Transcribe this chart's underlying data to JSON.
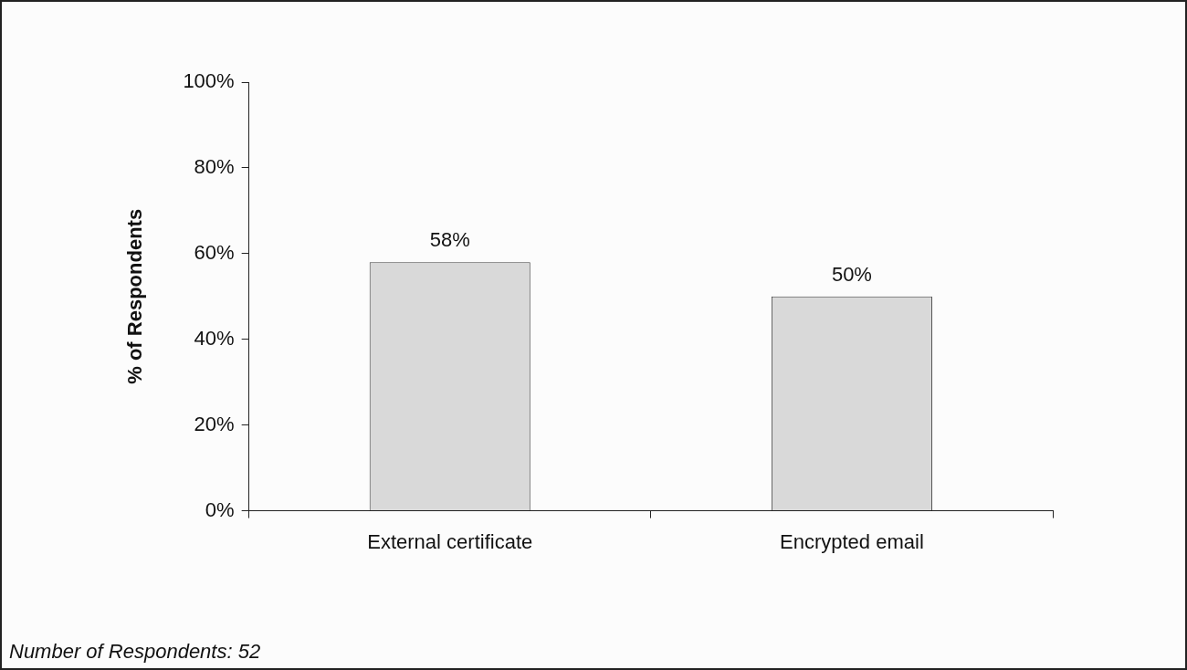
{
  "chart_data": {
    "type": "bar",
    "ylabel": "% of Respondents",
    "categories": [
      "External certificate",
      "Encrypted email"
    ],
    "values": [
      58,
      50
    ],
    "color": "#d9d9d9",
    "ylim": [
      0,
      100
    ],
    "yticks": [
      {
        "value": 0,
        "label": "0%"
      },
      {
        "value": 20,
        "label": "20%"
      },
      {
        "value": 40,
        "label": "40%"
      },
      {
        "value": 60,
        "label": "60%"
      },
      {
        "value": 80,
        "label": "80%"
      },
      {
        "value": 100,
        "label": "100%"
      }
    ],
    "value_labels": [
      "58%",
      "50%"
    ],
    "grid": false,
    "legend": false,
    "annotations": [
      "Number of Respondents: 52"
    ]
  }
}
